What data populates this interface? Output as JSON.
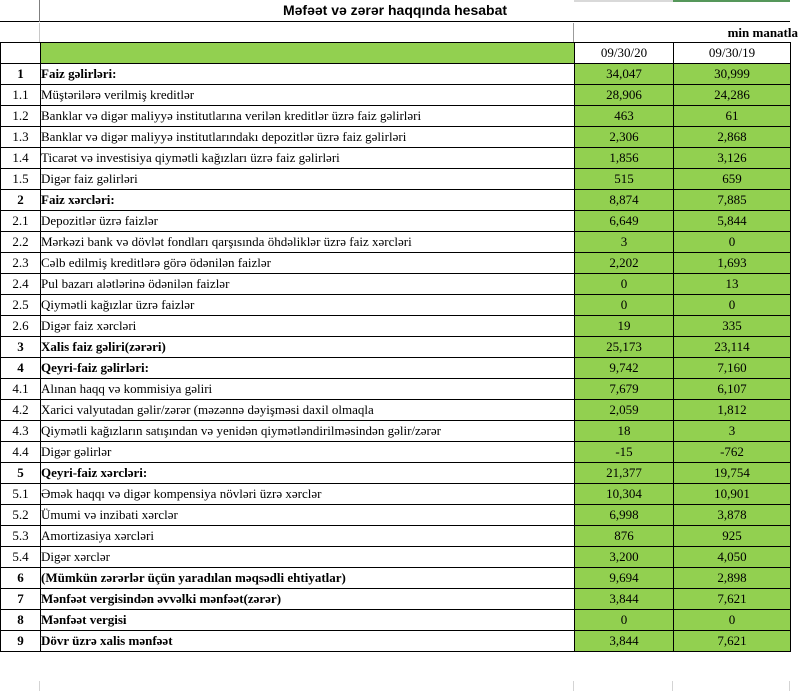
{
  "title": "Məfəət və zərər haqqında hesabat",
  "unit_label": "min manatla",
  "colors": {
    "green": "#92D050",
    "top_strip_green": "#55975a",
    "top_strip_gray": "#d9d9d9",
    "border": "#000000"
  },
  "table": {
    "columns": [
      "09/30/20",
      "09/30/19"
    ],
    "rows": [
      {
        "no": "1",
        "label": "Faiz gəlirləri:",
        "values": [
          "34,047",
          "30,999"
        ],
        "bold": true
      },
      {
        "no": "1.1",
        "label": "Müştərilərə verilmiş kreditlər",
        "values": [
          "28,906",
          "24,286"
        ],
        "bold": false
      },
      {
        "no": "1.2",
        "label": "Banklar və digər maliyyə institutlarına verilən kreditlər üzrə faiz gəlirləri",
        "values": [
          "463",
          "61"
        ],
        "bold": false
      },
      {
        "no": "1.3",
        "label": "Banklar və digər maliyyə institutlarındakı depozitlər üzrə faiz gəlirləri",
        "values": [
          "2,306",
          "2,868"
        ],
        "bold": false
      },
      {
        "no": "1.4",
        "label": "Ticarət və investisiya qiymətli kağızları üzrə faiz gəlirləri",
        "values": [
          "1,856",
          "3,126"
        ],
        "bold": false
      },
      {
        "no": "1.5",
        "label": "Digər faiz gəlirləri",
        "values": [
          "515",
          "659"
        ],
        "bold": false
      },
      {
        "no": "2",
        "label": "Faiz xərcləri:",
        "values": [
          "8,874",
          "7,885"
        ],
        "bold": true
      },
      {
        "no": "2.1",
        "label": "Depozitlər üzrə faizlər",
        "values": [
          "6,649",
          "5,844"
        ],
        "bold": false
      },
      {
        "no": "2.2",
        "label": "Mərkəzi bank və dövlət fondları qarşısında öhdəliklər üzrə faiz xərcləri",
        "values": [
          "3",
          "0"
        ],
        "bold": false
      },
      {
        "no": "2.3",
        "label": "Cəlb edilmiş kreditlərə görə ödənilən faizlər",
        "values": [
          "2,202",
          "1,693"
        ],
        "bold": false
      },
      {
        "no": "2.4",
        "label": "Pul bazarı alətlərinə ödənilən faizlər",
        "values": [
          "0",
          "13"
        ],
        "bold": false
      },
      {
        "no": "2.5",
        "label": "Qiymətli kağızlar üzrə faizlər",
        "values": [
          "0",
          "0"
        ],
        "bold": false
      },
      {
        "no": "2.6",
        "label": "Digər faiz xərcləri",
        "values": [
          "19",
          "335"
        ],
        "bold": false
      },
      {
        "no": "3",
        "label": "Xalis faiz gəliri(zərəri)",
        "values": [
          "25,173",
          "23,114"
        ],
        "bold": true
      },
      {
        "no": "4",
        "label": "Qeyri-faiz gəlirləri:",
        "values": [
          "9,742",
          "7,160"
        ],
        "bold": true
      },
      {
        "no": "4.1",
        "label": "Alınan haqq və kommisiya gəliri",
        "values": [
          "7,679",
          "6,107"
        ],
        "bold": false
      },
      {
        "no": "4.2",
        "label": "Xarici valyutadan gəlir/zərər (məzənnə dəyişməsi daxil olmaqla",
        "values": [
          "2,059",
          "1,812"
        ],
        "bold": false
      },
      {
        "no": "4.3",
        "label": "Qiymətli kağızların satışından və yenidən qiymətləndirilməsindən gəlir/zərər",
        "values": [
          "18",
          "3"
        ],
        "bold": false
      },
      {
        "no": "4.4",
        "label": "Digər gəlirlər",
        "values": [
          "-15",
          "-762"
        ],
        "bold": false
      },
      {
        "no": "5",
        "label": "Qeyri-faiz xərcləri:",
        "values": [
          "21,377",
          "19,754"
        ],
        "bold": true
      },
      {
        "no": "5.1",
        "label": "Əmək haqqı və digər kompensiya növləri üzrə xərclər",
        "values": [
          "10,304",
          "10,901"
        ],
        "bold": false
      },
      {
        "no": "5.2",
        "label": "Ümumi və inzibati xərclər",
        "values": [
          "6,998",
          "3,878"
        ],
        "bold": false
      },
      {
        "no": "5.3",
        "label": "Amortizasiya xərcləri",
        "values": [
          "876",
          "925"
        ],
        "bold": false
      },
      {
        "no": "5.4",
        "label": "Digər xərclər",
        "values": [
          "3,200",
          "4,050"
        ],
        "bold": false
      },
      {
        "no": "6",
        "label": "(Mümkün zərərlər üçün yaradılan məqsədli ehtiyatlar)",
        "values": [
          "9,694",
          "2,898"
        ],
        "bold": true
      },
      {
        "no": "7",
        "label": "Mənfəət vergisindən əvvəlki mənfəət(zərər)",
        "values": [
          "3,844",
          "7,621"
        ],
        "bold": true
      },
      {
        "no": "8",
        "label": "Mənfəət vergisi",
        "values": [
          "0",
          "0"
        ],
        "bold": true
      },
      {
        "no": "9",
        "label": "Dövr üzrə xalis mənfəət",
        "values": [
          "3,844",
          "7,621"
        ],
        "bold": true
      }
    ]
  }
}
